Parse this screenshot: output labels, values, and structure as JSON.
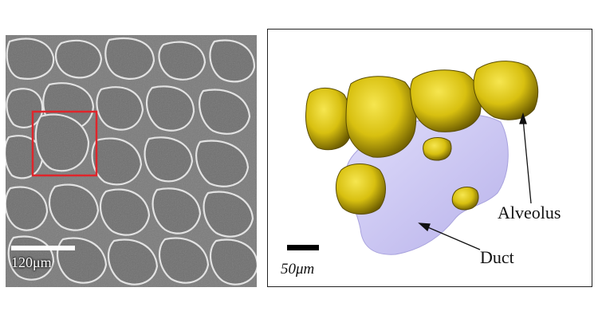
{
  "left_panel": {
    "description_icon": "micro-ct-slice",
    "scale_bar_label": "120μm",
    "roi_color": "#e0252b"
  },
  "right_panel": {
    "scale_bar_label": "50μm",
    "labels": {
      "alveolus": "Alveolus",
      "duct": "Duct"
    },
    "colors": {
      "alveolus": "#d8c010",
      "duct": "#c9c4f0"
    }
  }
}
